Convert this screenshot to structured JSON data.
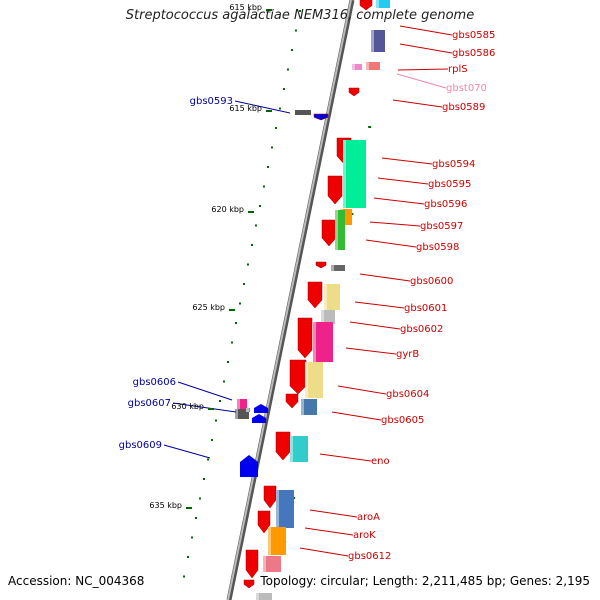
{
  "title": "Streptococcus agalactiae NEM316, complete genome",
  "footer": {
    "accession": "Accession: NC_004368",
    "topology": "Topology: circular; Length: 2,211,485 bp; Genes: 2,195"
  },
  "colors": {
    "forward_label": "#cc0000",
    "reverse_label": "#000099",
    "trna_label": "#ee88aa",
    "backbone": "#888888",
    "tick": "#006600"
  },
  "ticks": [
    "615 kbp",
    "615 kbp",
    "620 kbp",
    "625 kbp",
    "630 kbp",
    "635 kbp"
  ],
  "forward_genes": [
    "gbs0585",
    "gbs0586",
    "rplS",
    "gbst070",
    "gbs0589",
    "gbs0594",
    "gbs0595",
    "gbs0596",
    "gbs0597",
    "gbs0598",
    "gbs0600",
    "gbs0601",
    "gbs0602",
    "gyrB",
    "gbs0604",
    "gbs0605",
    "eno",
    "aroA",
    "aroK",
    "gbs0612"
  ],
  "reverse_genes": [
    "gbs0593",
    "gbs0606",
    "gbs0607",
    "gbs0609"
  ]
}
